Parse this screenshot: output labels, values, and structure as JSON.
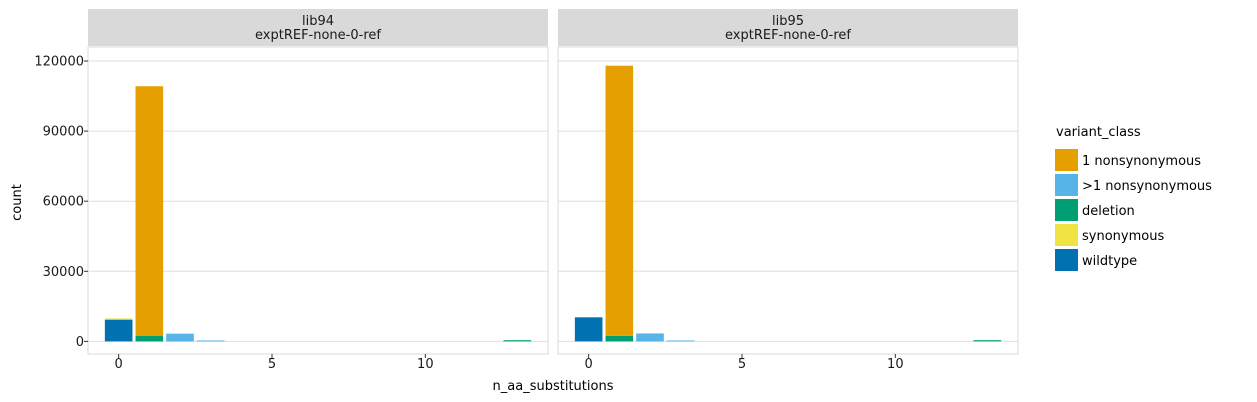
{
  "chart_data": {
    "type": "bar",
    "stacked": true,
    "xlabel": "n_aa_substitutions",
    "ylabel": "count",
    "xlim": [
      -1,
      14
    ],
    "ylim": [
      -5400,
      126000
    ],
    "x_ticks": [
      0,
      5,
      10
    ],
    "y_ticks": [
      0,
      30000,
      60000,
      90000,
      120000
    ],
    "grid": true,
    "legend_position": "right",
    "legend_title": "variant_class",
    "series": [
      {
        "name": "1 nonsynonymous",
        "color": "#E69F00"
      },
      {
        "name": ">1 nonsynonymous",
        "color": "#56B4E9"
      },
      {
        "name": "deletion",
        "color": "#009E73"
      },
      {
        "name": "synonymous",
        "color": "#F0E442"
      },
      {
        "name": "wildtype",
        "color": "#0072B2"
      }
    ],
    "facets": [
      {
        "strip_line1": "lib94",
        "strip_line2": "exptREF-none-0-ref",
        "bars": [
          {
            "x": 0,
            "segments": [
              {
                "class": "wildtype",
                "value": 9300
              },
              {
                "class": "synonymous",
                "value": 500
              }
            ]
          },
          {
            "x": 1,
            "segments": [
              {
                "class": "deletion",
                "value": 2300
              },
              {
                "class": "1 nonsynonymous",
                "value": 106900
              }
            ]
          },
          {
            "x": 2,
            "segments": [
              {
                "class": ">1 nonsynonymous",
                "value": 3300
              }
            ]
          },
          {
            "x": 3,
            "segments": [
              {
                "class": ">1 nonsynonymous",
                "value": 400
              }
            ]
          },
          {
            "x": 13,
            "segments": [
              {
                "class": "deletion",
                "value": 500
              }
            ]
          }
        ]
      },
      {
        "strip_line1": "lib95",
        "strip_line2": "exptREF-none-0-ref",
        "bars": [
          {
            "x": 0,
            "segments": [
              {
                "class": "wildtype",
                "value": 10300
              }
            ]
          },
          {
            "x": 1,
            "segments": [
              {
                "class": "deletion",
                "value": 2400
              },
              {
                "class": "1 nonsynonymous",
                "value": 115600
              }
            ]
          },
          {
            "x": 2,
            "segments": [
              {
                "class": ">1 nonsynonymous",
                "value": 3400
              }
            ]
          },
          {
            "x": 3,
            "segments": [
              {
                "class": ">1 nonsynonymous",
                "value": 400
              }
            ]
          },
          {
            "x": 13,
            "segments": [
              {
                "class": "deletion",
                "value": 500
              }
            ]
          }
        ]
      }
    ]
  }
}
